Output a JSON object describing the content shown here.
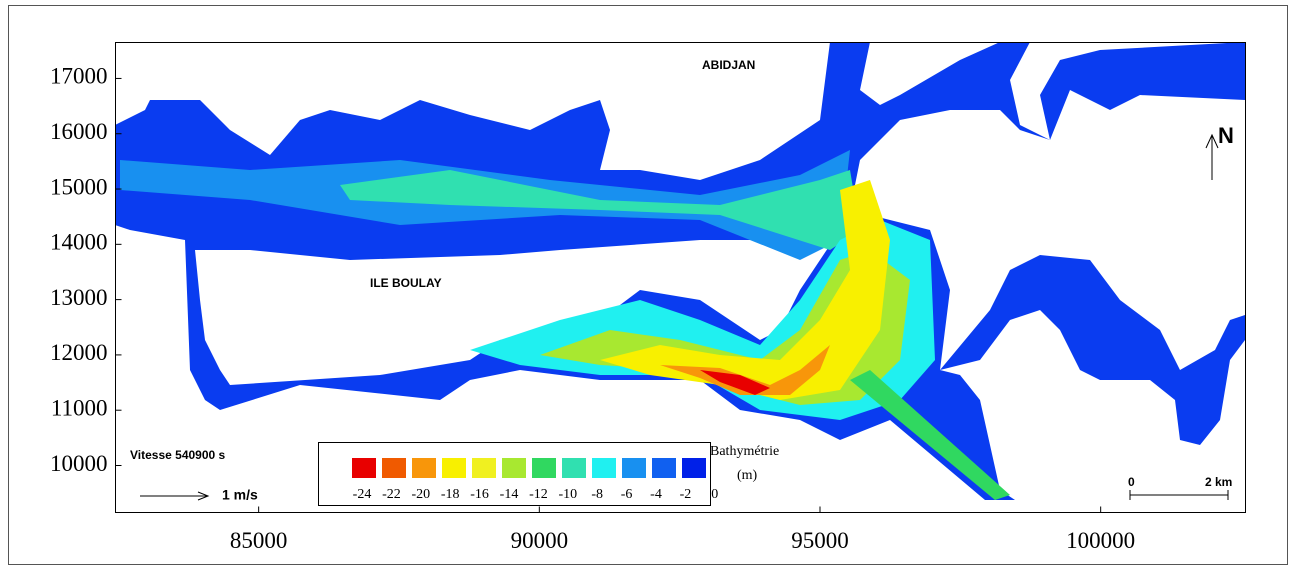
{
  "map": {
    "axes": {
      "xlim": [
        82450,
        102580
      ],
      "ylim": [
        9150,
        17650
      ],
      "xticks": [
        85000,
        90000,
        95000,
        100000
      ],
      "yticks": [
        10000,
        11000,
        12000,
        13000,
        14000,
        15000,
        16000,
        17000
      ]
    },
    "labels": {
      "city": "ABIDJAN",
      "island": "ILE BOULAY",
      "north": "N",
      "time": "Vitesse 540900 s",
      "vector_scale": "1 m/s"
    },
    "legend": {
      "title": "Bathymétrie",
      "unit": "(m)",
      "colors": [
        "#e80000",
        "#f05a00",
        "#f8960a",
        "#f8f000",
        "#f0f020",
        "#a8e830",
        "#30d860",
        "#30e0b0",
        "#20f0f0",
        "#1890f0",
        "#1060f0",
        "#0020e8"
      ],
      "values": [
        -24,
        -22,
        -20,
        -18,
        -16,
        -14,
        -12,
        -10,
        -8,
        -6,
        -4,
        -2,
        0
      ]
    },
    "scale_bar": {
      "start": "0",
      "end": "2 km"
    }
  }
}
